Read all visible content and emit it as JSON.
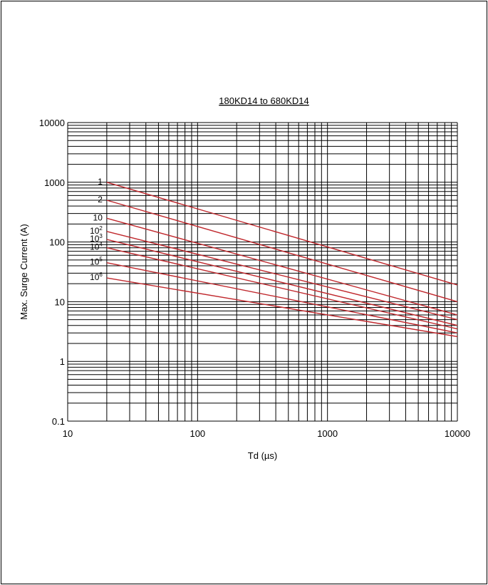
{
  "chart_data": {
    "type": "line",
    "title": "180KD14 to 680KD14",
    "xlabel": "Td (µs)",
    "ylabel": "Max. Surge Current (A)",
    "xscale": "log",
    "yscale": "log",
    "xlim": [
      10,
      10000
    ],
    "ylim": [
      0.1,
      10000
    ],
    "grid": true,
    "line_color": "#c0282d",
    "x_ticks": [
      "10",
      "100",
      "1000",
      "10000"
    ],
    "y_ticks": [
      "0.1",
      "1",
      "10",
      "100",
      "1000",
      "10000"
    ],
    "series": [
      {
        "name": "1",
        "label_base": "1",
        "label_sup": "",
        "x": [
          20,
          10000
        ],
        "y": [
          1000,
          19
        ]
      },
      {
        "name": "2",
        "label_base": "2",
        "label_sup": "",
        "x": [
          20,
          10000
        ],
        "y": [
          500,
          10
        ]
      },
      {
        "name": "10",
        "label_base": "10",
        "label_sup": "",
        "x": [
          20,
          10000
        ],
        "y": [
          250,
          6
        ]
      },
      {
        "name": "10²",
        "label_base": "10",
        "label_sup": "2",
        "x": [
          20,
          10000
        ],
        "y": [
          150,
          5
        ]
      },
      {
        "name": "10³",
        "label_base": "10",
        "label_sup": "3",
        "x": [
          20,
          10000
        ],
        "y": [
          110,
          4
        ]
      },
      {
        "name": "10⁴",
        "label_base": "10",
        "label_sup": "4",
        "x": [
          20,
          10000
        ],
        "y": [
          80,
          3.5
        ]
      },
      {
        "name": "10⁵",
        "label_base": "10",
        "label_sup": "5",
        "x": [
          20,
          10000
        ],
        "y": [
          45,
          3
        ]
      },
      {
        "name": "10⁶",
        "label_base": "10",
        "label_sup": "6",
        "x": [
          20,
          10000
        ],
        "y": [
          25,
          2.6
        ]
      }
    ]
  }
}
